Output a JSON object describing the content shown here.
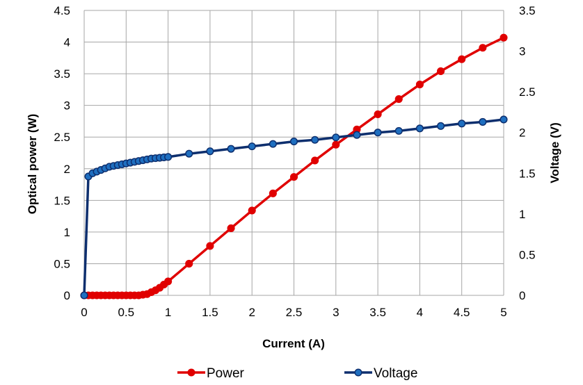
{
  "chart_data": {
    "type": "line",
    "title": "",
    "xlabel": "Current (A)",
    "ylabel": "Optical power (W)",
    "y2label": "Voltage (V)",
    "xlim": [
      0,
      5
    ],
    "ylim": [
      0,
      4.5
    ],
    "y2lim": [
      0,
      3.5
    ],
    "grid": true,
    "legend": "bottom",
    "x_ticks": [
      "0",
      "0.5",
      "1",
      "1.5",
      "2",
      "2.5",
      "3",
      "3.5",
      "4",
      "4.5",
      "5"
    ],
    "y_ticks": [
      "0",
      "0.5",
      "1",
      "1.5",
      "2",
      "2.5",
      "3",
      "3.5",
      "4",
      "4.5"
    ],
    "y2_ticks": [
      "0",
      "0.5",
      "1",
      "1.5",
      "2",
      "2.5",
      "3",
      "3.5"
    ],
    "series": [
      {
        "name": "Power",
        "axis": "left",
        "color": "#e00000",
        "x": [
          0,
          0.05,
          0.1,
          0.15,
          0.2,
          0.25,
          0.3,
          0.35,
          0.4,
          0.45,
          0.5,
          0.55,
          0.6,
          0.65,
          0.7,
          0.75,
          0.8,
          0.85,
          0.9,
          0.95,
          1.0,
          1.25,
          1.5,
          1.75,
          2.0,
          2.25,
          2.5,
          2.75,
          3.0,
          3.25,
          3.5,
          3.75,
          4.0,
          4.25,
          4.5,
          4.75,
          5.0
        ],
        "values": [
          0,
          0,
          0,
          0,
          0,
          0,
          0,
          0,
          0,
          0,
          0,
          0,
          0,
          0,
          0.01,
          0.02,
          0.05,
          0.08,
          0.12,
          0.17,
          0.22,
          0.5,
          0.78,
          1.06,
          1.34,
          1.61,
          1.87,
          2.13,
          2.38,
          2.62,
          2.86,
          3.1,
          3.33,
          3.54,
          3.73,
          3.91,
          4.07
        ]
      },
      {
        "name": "Voltage",
        "axis": "right",
        "color": "#0e2f6e",
        "x": [
          0,
          0.05,
          0.1,
          0.15,
          0.2,
          0.25,
          0.3,
          0.35,
          0.4,
          0.45,
          0.5,
          0.55,
          0.6,
          0.65,
          0.7,
          0.75,
          0.8,
          0.85,
          0.9,
          0.95,
          1.0,
          1.25,
          1.5,
          1.75,
          2.0,
          2.25,
          2.5,
          2.75,
          3.0,
          3.25,
          3.5,
          3.75,
          4.0,
          4.25,
          4.5,
          4.75,
          5.0
        ],
        "values": [
          0,
          1.46,
          1.5,
          1.52,
          1.54,
          1.56,
          1.58,
          1.59,
          1.6,
          1.61,
          1.62,
          1.63,
          1.64,
          1.65,
          1.66,
          1.67,
          1.68,
          1.685,
          1.69,
          1.695,
          1.7,
          1.74,
          1.77,
          1.8,
          1.83,
          1.86,
          1.89,
          1.91,
          1.94,
          1.97,
          2.0,
          2.02,
          2.05,
          2.08,
          2.11,
          2.13,
          2.16
        ]
      }
    ]
  }
}
